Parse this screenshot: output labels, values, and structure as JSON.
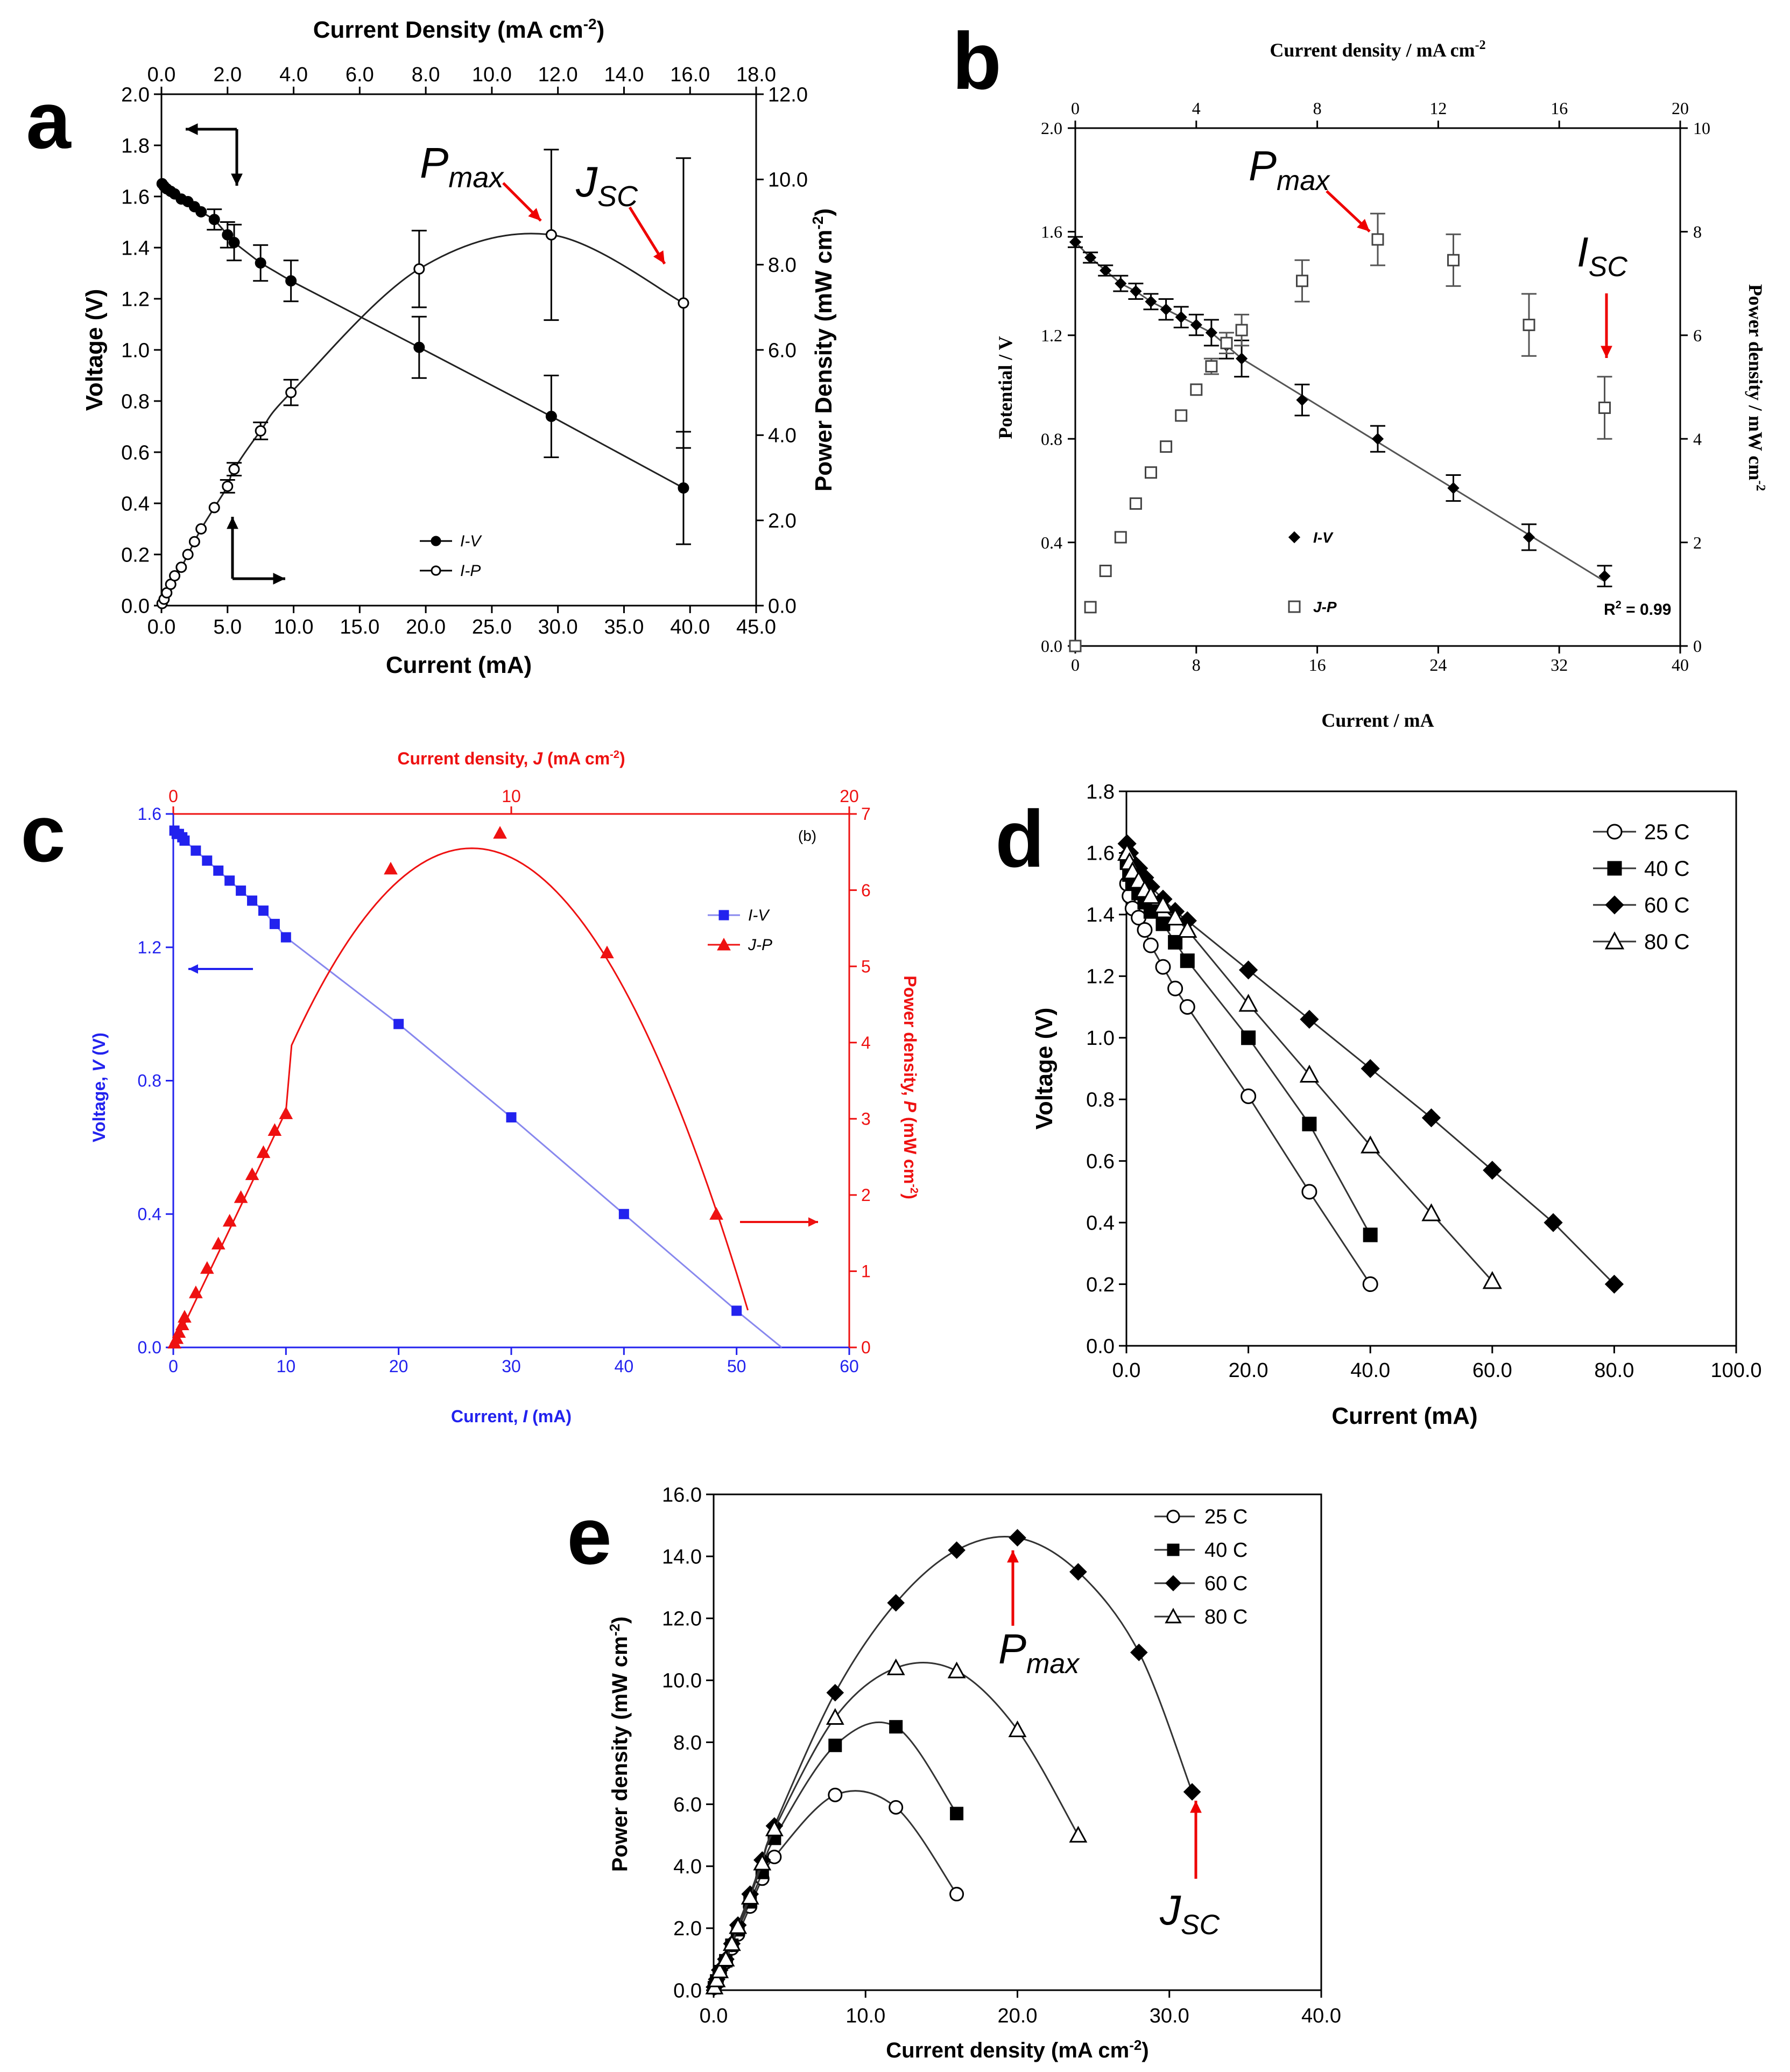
{
  "chart_data": [
    {
      "panel": "a",
      "type": "line",
      "xlabel": "Current (mA)",
      "x2label_main": "Current Density (mA cm",
      "x2label_sup": "-2",
      "x2label_end": ")",
      "ylabel": "Voltage (V)",
      "y2label_main": "Power Density (mW cm",
      "y2label_sup": "-2",
      "y2label_end": ")",
      "xlim": [
        0,
        45
      ],
      "ylim": [
        0,
        2.0
      ],
      "x2lim": [
        0,
        18
      ],
      "y2lim": [
        0,
        12
      ],
      "x_ticks": [
        "0.0",
        "5.0",
        "10.0",
        "15.0",
        "20.0",
        "25.0",
        "30.0",
        "35.0",
        "40.0",
        "45.0"
      ],
      "y_ticks": [
        "0.0",
        "0.2",
        "0.4",
        "0.6",
        "0.8",
        "1.0",
        "1.2",
        "1.4",
        "1.6",
        "1.8",
        "2.0"
      ],
      "x2_ticks": [
        "0.0",
        "2.0",
        "4.0",
        "6.0",
        "8.0",
        "10.0",
        "12.0",
        "14.0",
        "16.0",
        "18.0"
      ],
      "y2_ticks": [
        "0.0",
        "2.0",
        "4.0",
        "6.0",
        "8.0",
        "10.0",
        "12.0"
      ],
      "legend": [
        "I-V",
        "I-P"
      ],
      "series": [
        {
          "name": "I-V",
          "x": [
            0.05,
            0.2,
            0.4,
            0.7,
            1,
            1.5,
            2,
            2.5,
            3,
            4,
            5,
            5.5,
            7.5,
            9.8,
            19.5,
            29.5,
            39.5
          ],
          "y": [
            1.65,
            1.64,
            1.63,
            1.62,
            1.61,
            1.59,
            1.58,
            1.56,
            1.54,
            1.51,
            1.45,
            1.42,
            1.34,
            1.27,
            1.01,
            0.74,
            0.46
          ],
          "err": [
            0.02,
            0.02,
            0.02,
            0.02,
            0.02,
            0.02,
            0.02,
            0.02,
            0.03,
            0.04,
            0.05,
            0.07,
            0.07,
            0.08,
            0.12,
            0.16,
            0.22
          ]
        },
        {
          "name": "I-P",
          "x": [
            0.05,
            0.2,
            0.4,
            0.7,
            1,
            1.5,
            2,
            2.5,
            3,
            4,
            5,
            5.5,
            7.5,
            9.8,
            19.5,
            29.5,
            39.5
          ],
          "y": [
            0.05,
            0.15,
            0.3,
            0.5,
            0.7,
            0.9,
            1.2,
            1.5,
            1.8,
            2.3,
            2.8,
            3.2,
            4.1,
            5.0,
            7.9,
            8.7,
            7.1
          ],
          "err": [
            0.02,
            0.02,
            0.03,
            0.03,
            0.05,
            0.05,
            0.06,
            0.07,
            0.08,
            0.1,
            0.15,
            0.15,
            0.2,
            0.3,
            0.9,
            2.0,
            3.4
          ]
        }
      ],
      "annotations": {
        "pmax": "P",
        "pmax_sub": "max",
        "jsc": "J",
        "jsc_sub": "SC"
      }
    },
    {
      "panel": "b",
      "type": "scatter",
      "xlabel": "Current / mA",
      "x2label_main": "Current density / mA cm",
      "x2label_sup": "-2",
      "ylabel": "Potential / V",
      "y2label_main": "Power density / mW cm",
      "y2label_sup": "-2",
      "xlim": [
        0,
        40
      ],
      "ylim": [
        0,
        2.0
      ],
      "x2lim": [
        0,
        20
      ],
      "y2lim": [
        0,
        10
      ],
      "x_ticks": [
        "0",
        "8",
        "16",
        "24",
        "32",
        "40"
      ],
      "y_ticks": [
        "0.0",
        "0.4",
        "0.8",
        "1.2",
        "1.6",
        "2.0"
      ],
      "x2_ticks": [
        "0",
        "4",
        "8",
        "12",
        "16",
        "20"
      ],
      "y2_ticks": [
        "0",
        "2",
        "4",
        "6",
        "8",
        "10"
      ],
      "legend": [
        "I-V",
        "J-P"
      ],
      "r2": "R",
      "r2_sup": "2",
      "r2_value": " = 0.99",
      "series": [
        {
          "name": "I-V",
          "x": [
            0,
            1,
            2,
            3,
            4,
            5,
            6,
            7,
            8,
            9,
            10,
            11,
            15,
            20,
            25,
            30,
            35
          ],
          "y": [
            1.56,
            1.5,
            1.45,
            1.4,
            1.37,
            1.33,
            1.3,
            1.27,
            1.24,
            1.21,
            1.16,
            1.11,
            0.95,
            0.8,
            0.61,
            0.42,
            0.27
          ],
          "err": [
            0.02,
            0.02,
            0.02,
            0.03,
            0.03,
            0.03,
            0.04,
            0.04,
            0.04,
            0.05,
            0.05,
            0.07,
            0.06,
            0.05,
            0.05,
            0.05,
            0.04
          ]
        },
        {
          "name": "J-P",
          "x": [
            0,
            1,
            2,
            3,
            4,
            5,
            6,
            7,
            8,
            9,
            10,
            11,
            15,
            20,
            25,
            30,
            35
          ],
          "y": [
            0,
            0.75,
            1.45,
            2.1,
            2.75,
            3.35,
            3.85,
            4.45,
            4.95,
            5.4,
            5.85,
            6.1,
            7.05,
            7.85,
            7.45,
            6.2,
            4.6
          ],
          "err": [
            0,
            0,
            0,
            0,
            0,
            0,
            0,
            0,
            0,
            0.15,
            0.2,
            0.3,
            0.4,
            0.5,
            0.5,
            0.6,
            0.6
          ]
        }
      ],
      "annotations": {
        "pmax": "P",
        "pmax_sub": "max",
        "isc": "I",
        "isc_sub": "SC"
      }
    },
    {
      "panel": "c",
      "type": "line",
      "xlabel_main": "Current, ",
      "xlabel_var": "I",
      "xlabel_end": " (mA)",
      "x2label_main": "Current density, ",
      "x2label_var": "J",
      "x2label_end": " (mA cm",
      "x2label_sup": "-2",
      "x2label_close": ")",
      "ylabel_main": "Voltage, ",
      "ylabel_var": "V",
      "ylabel_end": " (V)",
      "y2label_main": "Power density, ",
      "y2label_var": "P",
      "y2label_end": " (mW cm",
      "y2label_sup": "-2",
      "y2label_close": ")",
      "tag": "(b)",
      "xlim": [
        0,
        60
      ],
      "ylim": [
        0,
        1.6
      ],
      "x2lim": [
        0,
        20
      ],
      "y2lim": [
        0,
        7
      ],
      "x_ticks": [
        "0",
        "10",
        "20",
        "30",
        "40",
        "50",
        "60"
      ],
      "y_ticks": [
        "0.0",
        "0.4",
        "0.8",
        "1.2",
        "1.6"
      ],
      "x2_ticks": [
        "0",
        "10",
        "20"
      ],
      "y2_ticks": [
        "0",
        "1",
        "2",
        "3",
        "4",
        "5",
        "6",
        "7"
      ],
      "legend": [
        "I-V",
        "J-P"
      ],
      "colors": {
        "iv": "#2222ee",
        "jp": "#ee1111",
        "iv_fit": "#8888ee"
      },
      "series": [
        {
          "name": "I-V",
          "x": [
            0.1,
            0.3,
            0.5,
            0.8,
            1,
            2,
            3,
            4,
            5,
            6,
            7,
            8,
            9,
            10,
            20,
            30,
            40,
            50
          ],
          "y": [
            1.55,
            1.54,
            1.54,
            1.53,
            1.52,
            1.49,
            1.46,
            1.43,
            1.4,
            1.37,
            1.34,
            1.31,
            1.27,
            1.23,
            0.97,
            0.69,
            0.4,
            0.11
          ]
        },
        {
          "name": "J-P",
          "x": [
            0.1,
            0.3,
            0.5,
            0.8,
            1,
            2,
            3,
            4,
            5,
            6,
            7,
            8,
            9,
            10,
            19.3,
            29,
            38.5,
            48.2
          ],
          "y": [
            0.06,
            0.12,
            0.2,
            0.3,
            0.4,
            0.72,
            1.04,
            1.36,
            1.66,
            1.97,
            2.27,
            2.56,
            2.85,
            3.07,
            6.28,
            6.75,
            5.18,
            1.75
          ]
        }
      ]
    },
    {
      "panel": "d",
      "type": "line",
      "xlabel": "Current (mA)",
      "ylabel": "Voltage (V)",
      "xlim": [
        0,
        100
      ],
      "ylim": [
        0,
        1.8
      ],
      "x_ticks": [
        "0.0",
        "20.0",
        "40.0",
        "60.0",
        "80.0",
        "100.0"
      ],
      "y_ticks": [
        "0.0",
        "0.2",
        "0.4",
        "0.6",
        "0.8",
        "1.0",
        "1.2",
        "1.4",
        "1.6",
        "1.8"
      ],
      "legend": [
        "25 C",
        "40 C",
        "60 C",
        "80 C"
      ],
      "series": [
        {
          "name": "25 C",
          "x": [
            0.1,
            0.5,
            1,
            2,
            3,
            4,
            6,
            8,
            10,
            20,
            30,
            40
          ],
          "y": [
            1.5,
            1.46,
            1.42,
            1.39,
            1.35,
            1.3,
            1.23,
            1.16,
            1.1,
            0.81,
            0.5,
            0.2
          ]
        },
        {
          "name": "40 C",
          "x": [
            0.1,
            0.5,
            1,
            2,
            3,
            4,
            6,
            8,
            10,
            20,
            30,
            40
          ],
          "y": [
            1.57,
            1.53,
            1.5,
            1.47,
            1.44,
            1.41,
            1.37,
            1.31,
            1.25,
            1.0,
            0.72,
            0.36
          ]
        },
        {
          "name": "60 C",
          "x": [
            0.1,
            0.5,
            1,
            2,
            3,
            4,
            6,
            8,
            10,
            20,
            30,
            40,
            50,
            60,
            70,
            80
          ],
          "y": [
            1.63,
            1.6,
            1.57,
            1.55,
            1.52,
            1.49,
            1.45,
            1.41,
            1.38,
            1.22,
            1.06,
            0.9,
            0.74,
            0.57,
            0.4,
            0.2
          ]
        },
        {
          "name": "80 C",
          "x": [
            0.1,
            0.5,
            1,
            2,
            3,
            4,
            6,
            8,
            10,
            20,
            30,
            40,
            50,
            60
          ],
          "y": [
            1.6,
            1.57,
            1.54,
            1.51,
            1.48,
            1.46,
            1.43,
            1.39,
            1.35,
            1.11,
            0.88,
            0.65,
            0.43,
            0.21
          ]
        }
      ]
    },
    {
      "panel": "e",
      "type": "line",
      "xlabel_main": "Current density (mA cm",
      "xlabel_sup": "-2",
      "xlabel_end": ")",
      "ylabel_main": "Power density (mW cm",
      "ylabel_sup": "-2",
      "ylabel_end": ")",
      "xlim": [
        0,
        40
      ],
      "ylim": [
        0,
        16
      ],
      "x_ticks": [
        "0.0",
        "10.0",
        "20.0",
        "30.0",
        "40.0"
      ],
      "y_ticks": [
        "0.0",
        "2.0",
        "4.0",
        "6.0",
        "8.0",
        "10.0",
        "12.0",
        "14.0",
        "16.0"
      ],
      "legend": [
        "25 C",
        "40 C",
        "60 C",
        "80 C"
      ],
      "annotations": {
        "pmax": "P",
        "pmax_sub": "max",
        "jsc": "J",
        "jsc_sub": "SC"
      },
      "series": [
        {
          "name": "25 C",
          "x": [
            0.05,
            0.2,
            0.4,
            0.8,
            1.2,
            1.6,
            2.4,
            3.2,
            4,
            8,
            12,
            16
          ],
          "y": [
            0.08,
            0.3,
            0.55,
            0.9,
            1.35,
            1.8,
            2.7,
            3.6,
            4.3,
            6.3,
            5.9,
            3.1
          ]
        },
        {
          "name": "40 C",
          "x": [
            0.05,
            0.2,
            0.4,
            0.8,
            1.2,
            1.6,
            2.4,
            3.2,
            4,
            8,
            12,
            16
          ],
          "y": [
            0.08,
            0.3,
            0.6,
            0.95,
            1.45,
            1.95,
            2.85,
            3.8,
            4.9,
            7.9,
            8.5,
            5.7
          ]
        },
        {
          "name": "60 C",
          "x": [
            0.05,
            0.2,
            0.4,
            0.8,
            1.2,
            1.6,
            2.4,
            3.2,
            4,
            8,
            12,
            16,
            20,
            24,
            28,
            31.5
          ],
          "y": [
            0.1,
            0.35,
            0.65,
            1.0,
            1.5,
            2.1,
            3.1,
            4.2,
            5.3,
            9.6,
            12.5,
            14.2,
            14.6,
            13.5,
            10.9,
            6.4
          ]
        },
        {
          "name": "80 C",
          "x": [
            0.05,
            0.2,
            0.4,
            0.8,
            1.2,
            1.6,
            2.4,
            3.2,
            4,
            8,
            12,
            16,
            20,
            24
          ],
          "y": [
            0.1,
            0.33,
            0.62,
            1.0,
            1.5,
            2.05,
            3.0,
            4.1,
            5.2,
            8.8,
            10.4,
            10.3,
            8.4,
            5.0
          ]
        }
      ]
    }
  ],
  "panel_labels": [
    "a",
    "b",
    "c",
    "d",
    "e"
  ]
}
